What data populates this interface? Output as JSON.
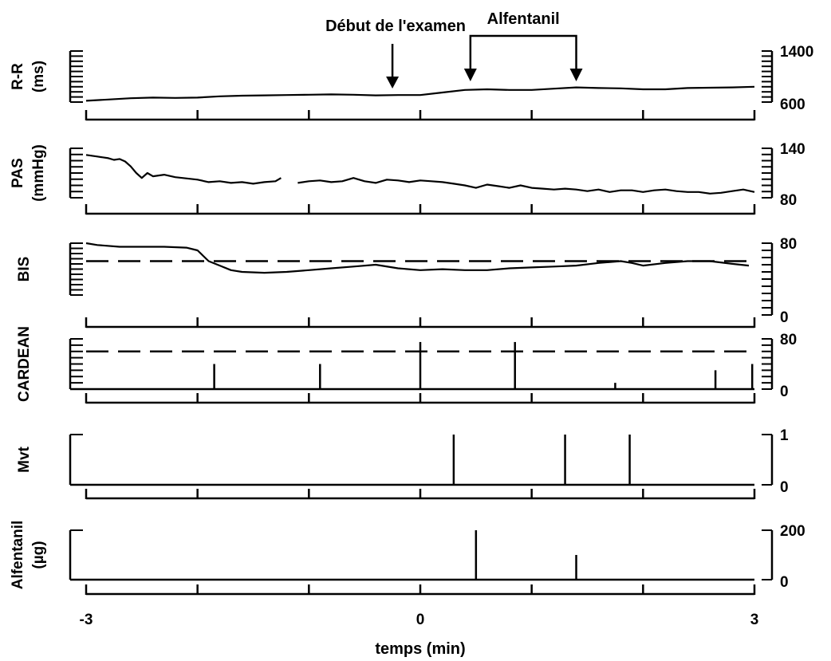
{
  "chart_data": {
    "type": "line",
    "annotations": {
      "start_exam": {
        "label": "Début de l'examen",
        "time": -0.25
      },
      "alfentanil": {
        "label": "Alfentanil",
        "start": 0.45,
        "end": 1.4
      }
    },
    "xaxis": {
      "label": "temps (min)",
      "range": [
        -3,
        3
      ],
      "ticks": [
        -3,
        -2,
        -1,
        0,
        1,
        2,
        3
      ],
      "tick_labels": [
        "-3",
        "0",
        "3"
      ]
    },
    "panels": [
      {
        "id": "rr",
        "ylabel": [
          "R-R",
          "(ms)"
        ],
        "ylim": [
          600,
          1400
        ],
        "tick_labels": [
          "1400",
          "600"
        ],
        "kind": "line",
        "series": [
          {
            "x": [
              -3,
              -2.8,
              -2.6,
              -2.4,
              -2.2,
              -2.0,
              -1.8,
              -1.6,
              -1.4,
              -1.2,
              -1.0,
              -0.8,
              -0.6,
              -0.4,
              -0.2,
              0,
              0.2,
              0.4,
              0.6,
              0.8,
              1.0,
              1.2,
              1.4,
              1.6,
              1.8,
              2.0,
              2.2,
              2.4,
              2.6,
              2.8,
              3.0
            ],
            "y": [
              620,
              640,
              660,
              670,
              665,
              670,
              690,
              700,
              705,
              710,
              715,
              720,
              715,
              705,
              710,
              710,
              750,
              790,
              800,
              790,
              790,
              810,
              830,
              820,
              815,
              800,
              800,
              820,
              825,
              830,
              840
            ]
          }
        ]
      },
      {
        "id": "pas",
        "ylabel": [
          "PAS",
          "(mmHg)"
        ],
        "ylim": [
          80,
          140
        ],
        "tick_labels": [
          "140",
          "80"
        ],
        "kind": "line",
        "series": [
          {
            "x": [
              -3,
              -2.9,
              -2.8,
              -2.75,
              -2.7,
              -2.65,
              -2.6,
              -2.55,
              -2.5,
              -2.45,
              -2.4,
              -2.3,
              -2.2,
              -2.0,
              -1.9,
              -1.8,
              -1.7,
              -1.6,
              -1.5,
              -1.4,
              -1.3,
              -1.25
            ],
            "y": [
              132,
              130,
              128,
              126,
              127,
              124,
              118,
              110,
              104,
              110,
              106,
              108,
              105,
              102,
              99,
              100,
              98,
              99,
              97,
              99,
              100,
              104
            ]
          },
          {
            "x": [
              -1.1,
              -1.0,
              -0.9,
              -0.8,
              -0.7,
              -0.6,
              -0.5,
              -0.4,
              -0.3,
              -0.2,
              -0.1,
              0,
              0.1,
              0.2,
              0.3,
              0.4,
              0.5,
              0.6,
              0.7,
              0.8,
              0.9,
              1.0,
              1.1,
              1.2,
              1.3,
              1.4,
              1.5,
              1.6,
              1.7,
              1.8,
              1.9,
              2.0,
              2.1,
              2.2,
              2.3,
              2.4,
              2.5,
              2.6,
              2.7,
              2.8,
              2.9,
              3.0
            ],
            "y": [
              98,
              100,
              101,
              99,
              100,
              104,
              100,
              98,
              102,
              101,
              99,
              101,
              100,
              99,
              97,
              95,
              92,
              96,
              94,
              92,
              95,
              92,
              91,
              90,
              91,
              90,
              88,
              90,
              87,
              89,
              89,
              87,
              89,
              90,
              88,
              87,
              87,
              85,
              86,
              88,
              90,
              87
            ]
          }
        ]
      },
      {
        "id": "bis",
        "ylabel": [
          "BIS"
        ],
        "ylim": [
          0,
          80
        ],
        "tick_labels": [
          "80",
          "0"
        ],
        "kind": "line",
        "threshold": 60,
        "series": [
          {
            "x": [
              -3,
              -2.9,
              -2.7,
              -2.5,
              -2.3,
              -2.1,
              -2.0,
              -1.9,
              -1.8,
              -1.7,
              -1.6,
              -1.4,
              -1.2,
              -1.0,
              -0.8,
              -0.6,
              -0.4,
              -0.2,
              0,
              0.2,
              0.4,
              0.6,
              0.8,
              1.0,
              1.2,
              1.4,
              1.6,
              1.8,
              1.9,
              2.0,
              2.2,
              2.4,
              2.6,
              2.8,
              2.95
            ],
            "y": [
              80,
              78,
              76,
              76,
              76,
              75,
              72,
              60,
              55,
              50,
              48,
              47,
              48,
              50,
              52,
              54,
              56,
              52,
              50,
              51,
              50,
              50,
              52,
              53,
              54,
              55,
              58,
              60,
              58,
              55,
              58,
              60,
              60,
              57,
              55
            ]
          }
        ]
      },
      {
        "id": "cardean",
        "ylabel": [
          "CARDEAN"
        ],
        "ylim": [
          0,
          80
        ],
        "tick_labels": [
          "80",
          "0"
        ],
        "kind": "stem",
        "threshold": 60,
        "series": [
          {
            "x": [
              -1.85,
              -0.9,
              0,
              0.85,
              1.75,
              2.65,
              2.98
            ],
            "y": [
              40,
              40,
              75,
              75,
              10,
              30,
              40
            ]
          }
        ]
      },
      {
        "id": "mvt",
        "ylabel": [
          "Mvt"
        ],
        "ylim": [
          0,
          1
        ],
        "tick_labels": [
          "1",
          "0"
        ],
        "kind": "stem",
        "series": [
          {
            "x": [
              0.3,
              1.3,
              1.88
            ],
            "y": [
              1,
              1,
              1
            ]
          }
        ]
      },
      {
        "id": "alfentanil",
        "ylabel": [
          "Alfentanil",
          "(µg)"
        ],
        "ylim": [
          0,
          200
        ],
        "tick_labels": [
          "200",
          "0"
        ],
        "kind": "stem",
        "series": [
          {
            "x": [
              0.5,
              1.4
            ],
            "y": [
              200,
              100
            ]
          }
        ]
      }
    ]
  }
}
